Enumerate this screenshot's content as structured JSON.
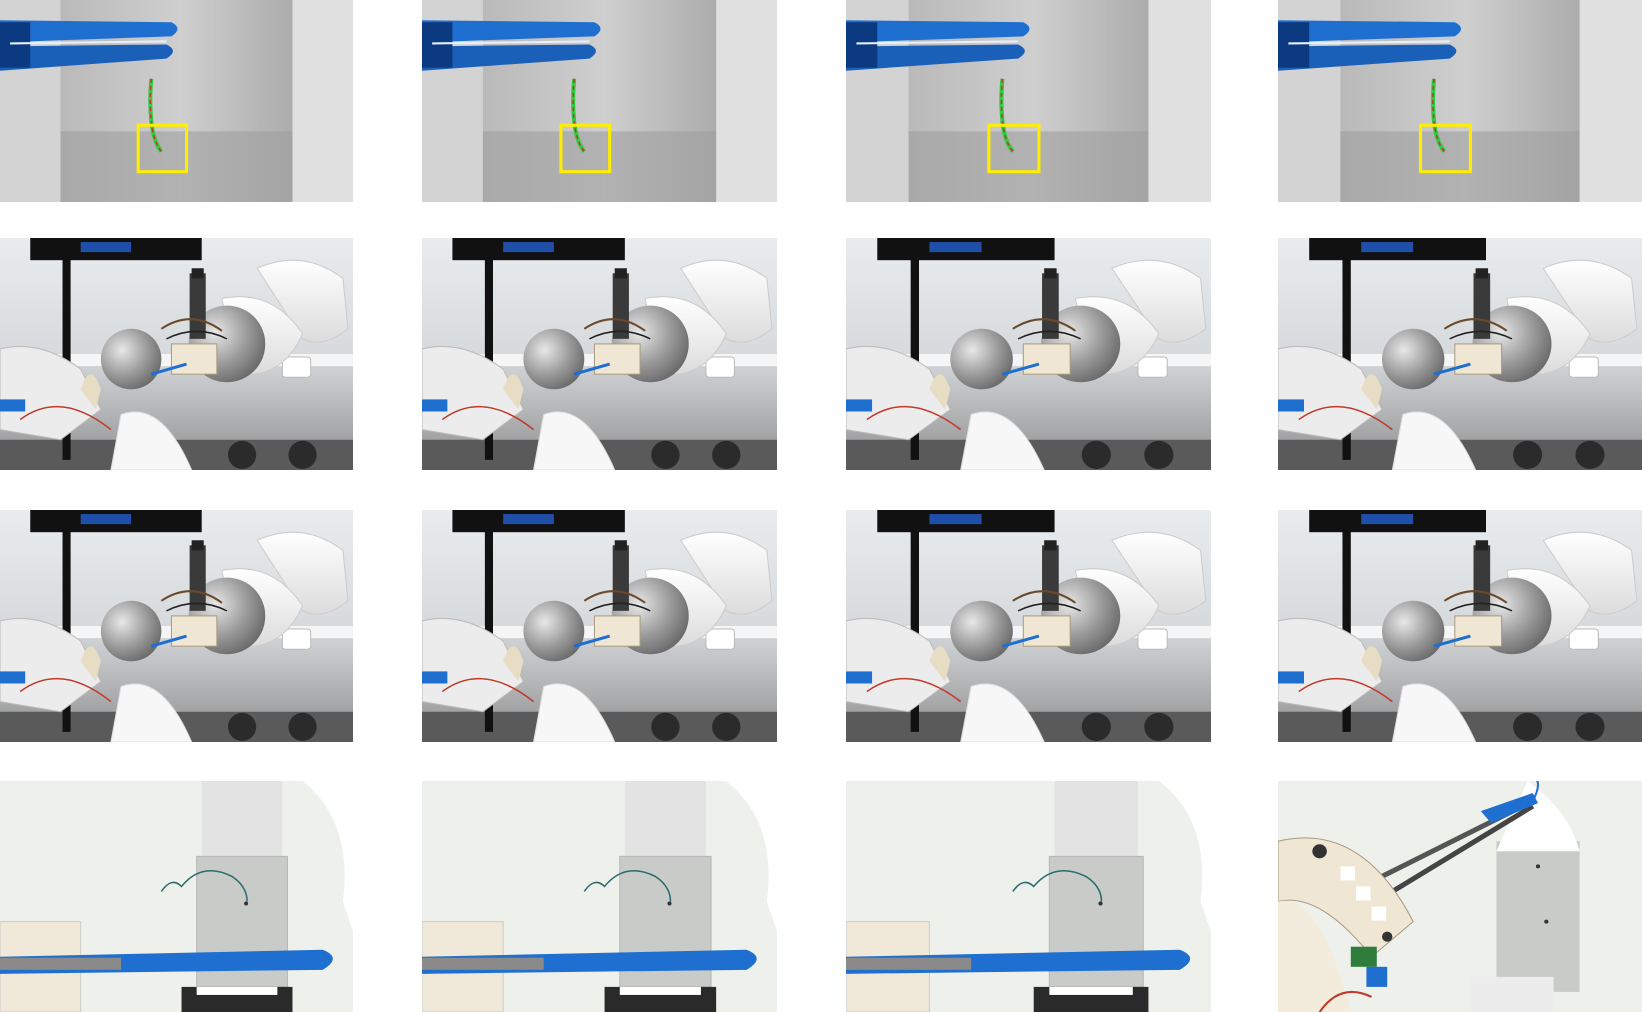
{
  "figure": {
    "rows": [
      {
        "row": 1,
        "scene": "close-up-needle-tracking",
        "frames": 4
      },
      {
        "row": 2,
        "scene": "robot-arm-side-view",
        "frames": 4
      },
      {
        "row": 3,
        "scene": "robot-arm-side-view",
        "frames": 4
      },
      {
        "row": 4,
        "scene": "top-down-suturing-view",
        "frames": 4
      }
    ],
    "colors": {
      "tracking_box": "#ffee00",
      "needle_trace": "#2ecc40",
      "instrument_blue": "#1f6fd1",
      "background_gray": "#c8c8c8",
      "robot_white": "#f2f2f2"
    }
  }
}
